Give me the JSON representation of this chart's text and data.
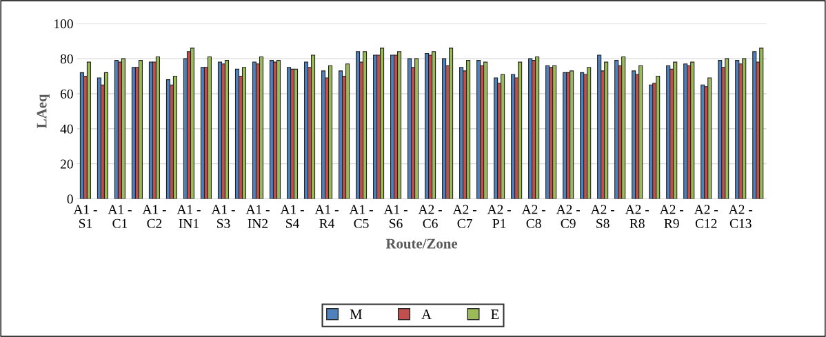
{
  "chart_data": {
    "type": "bar",
    "xlabel": "Route/Zone",
    "ylabel": "LAeq",
    "categories": [
      "A1 -\nS1",
      null,
      "A1 -\nC1",
      null,
      "A1 -\nC2",
      null,
      "A1 -\nIN1",
      null,
      "A1 -\nS3",
      null,
      "A1 -\nIN2",
      null,
      "A1 -\nS4",
      null,
      "A1 -\nR4",
      null,
      "A1 -\nC5",
      null,
      "A1 -\nS6",
      null,
      "A2 -\nC6",
      null,
      "A2 -\nC7",
      null,
      "A2 -\nP1",
      null,
      "A2 -\nC8",
      null,
      "A2 -\nC9",
      null,
      "A2 -\nS8",
      null,
      "A2 -\nR8",
      null,
      "A2 -\nR9",
      null,
      "A2 -\nC12",
      null,
      "A2 -\nC13",
      null
    ],
    "series": [
      {
        "name": "M",
        "color": "#4f81bd",
        "values": [
          72,
          69,
          79,
          75,
          78,
          68,
          80,
          75,
          78,
          74,
          78,
          79,
          75,
          78,
          73,
          73,
          84,
          82,
          82,
          80,
          83,
          80,
          75,
          79,
          69,
          71,
          80,
          76,
          72,
          72,
          82,
          79,
          73,
          65,
          76,
          77,
          65,
          79,
          79,
          84
        ]
      },
      {
        "name": "A",
        "color": "#c0504d",
        "values": [
          70,
          65,
          78,
          75,
          78,
          65,
          84,
          75,
          77,
          70,
          77,
          78,
          74,
          75,
          69,
          70,
          78,
          82,
          82,
          75,
          82,
          76,
          73,
          76,
          66,
          69,
          79,
          75,
          72,
          71,
          73,
          76,
          71,
          66,
          74,
          76,
          64,
          75,
          77,
          78
        ]
      },
      {
        "name": "E",
        "color": "#9bbb59",
        "values": [
          78,
          72,
          80,
          79,
          81,
          70,
          86,
          81,
          79,
          75,
          81,
          79,
          74,
          82,
          76,
          77,
          84,
          86,
          84,
          80,
          84,
          86,
          79,
          78,
          71,
          78,
          81,
          76,
          73,
          75,
          78,
          81,
          76,
          70,
          78,
          78,
          69,
          80,
          80,
          86
        ]
      }
    ],
    "ylim": [
      0,
      100
    ],
    "yticks": [
      0,
      20,
      40,
      60,
      80,
      100
    ],
    "grid": "y",
    "legend": "bottom"
  }
}
